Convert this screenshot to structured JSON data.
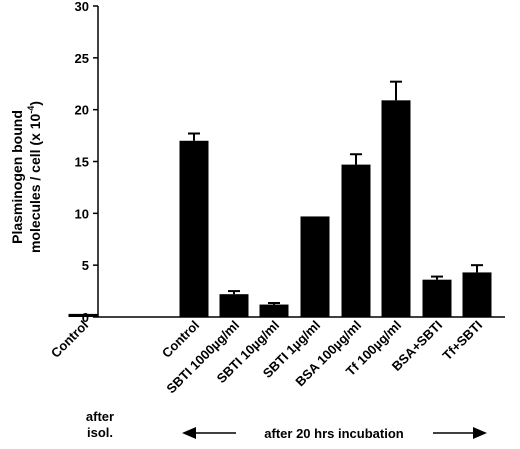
{
  "chart_data": {
    "type": "bar",
    "categories": [
      "Control",
      "Control",
      "SBTI 1000µg/ml",
      "SBTI 10µg/ml",
      "SBTI 1µg/ml",
      "BSA 100µg/ml",
      "Tf 100µg/ml",
      "BSA+SBTI",
      "Tf+SBTI"
    ],
    "values": [
      0.3,
      17.0,
      2.2,
      1.2,
      9.7,
      14.7,
      20.9,
      3.6,
      4.3
    ],
    "errors": [
      0.0,
      0.7,
      0.3,
      0.15,
      0.0,
      1.0,
      1.8,
      0.3,
      0.7
    ],
    "ylabel_line1": "Plasminogen bound",
    "ylabel_line2": "molecules / cell (x 10",
    "ylabel_exp": "-4",
    "ylabel_close": ")",
    "ylim": [
      0,
      30
    ],
    "yticks": [
      0,
      5,
      10,
      15,
      20,
      25,
      30
    ],
    "grid": false,
    "bar_color": "#000000"
  },
  "annotations": {
    "after_isol_line1": "after",
    "after_isol_line2": "isol.",
    "incubation": "after 20 hrs incubation"
  }
}
